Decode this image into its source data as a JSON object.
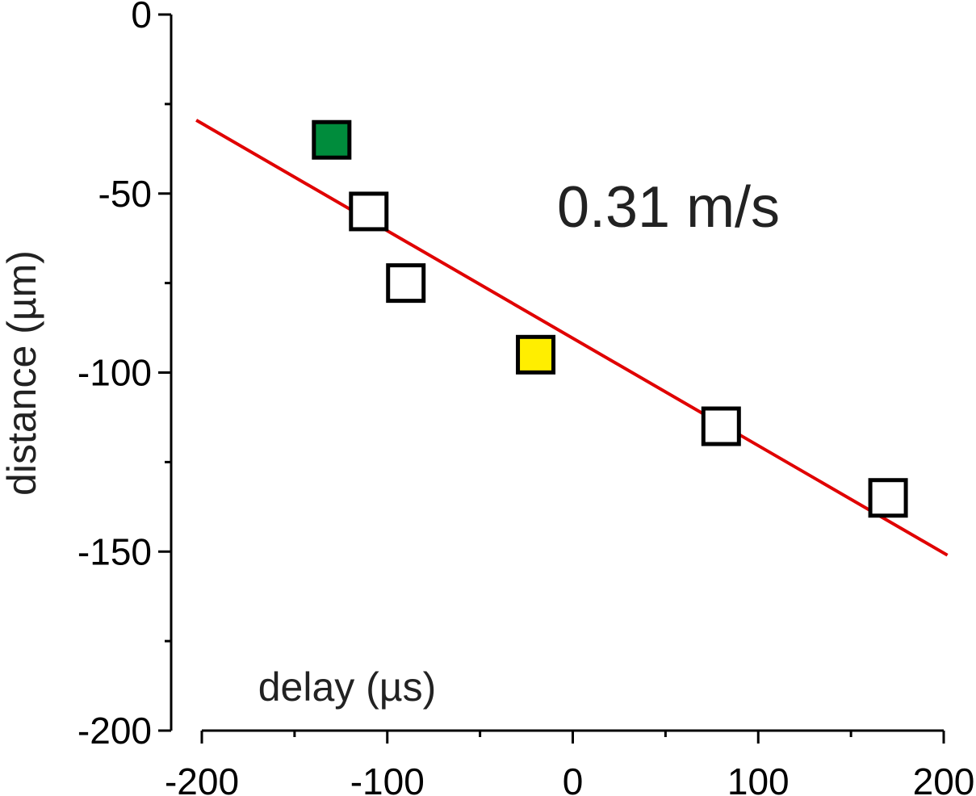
{
  "chart_data": {
    "type": "scatter",
    "xlabel": "delay (µs)",
    "ylabel": "distance (µm)",
    "xlim": [
      -200,
      200
    ],
    "ylim": [
      -200,
      0
    ],
    "xticks": [
      -200,
      -100,
      0,
      100,
      200
    ],
    "yticks": [
      0,
      -50,
      -100,
      -150,
      -200
    ],
    "grid": false,
    "legend": "none",
    "annotation": "0.31 m/s",
    "points": [
      {
        "x": -130,
        "y": -35,
        "fill": "#008c3c"
      },
      {
        "x": -110,
        "y": -55,
        "fill": "#ffffff"
      },
      {
        "x": -90,
        "y": -75,
        "fill": "#ffffff"
      },
      {
        "x": -20,
        "y": -95,
        "fill": "#ffee00"
      },
      {
        "x": 80,
        "y": -115,
        "fill": "#ffffff"
      },
      {
        "x": 170,
        "y": -135,
        "fill": "#ffffff"
      }
    ],
    "fit_line": {
      "x": [
        -203,
        202
      ],
      "y": [
        -29.5,
        -151
      ],
      "color": "#e00000"
    }
  }
}
